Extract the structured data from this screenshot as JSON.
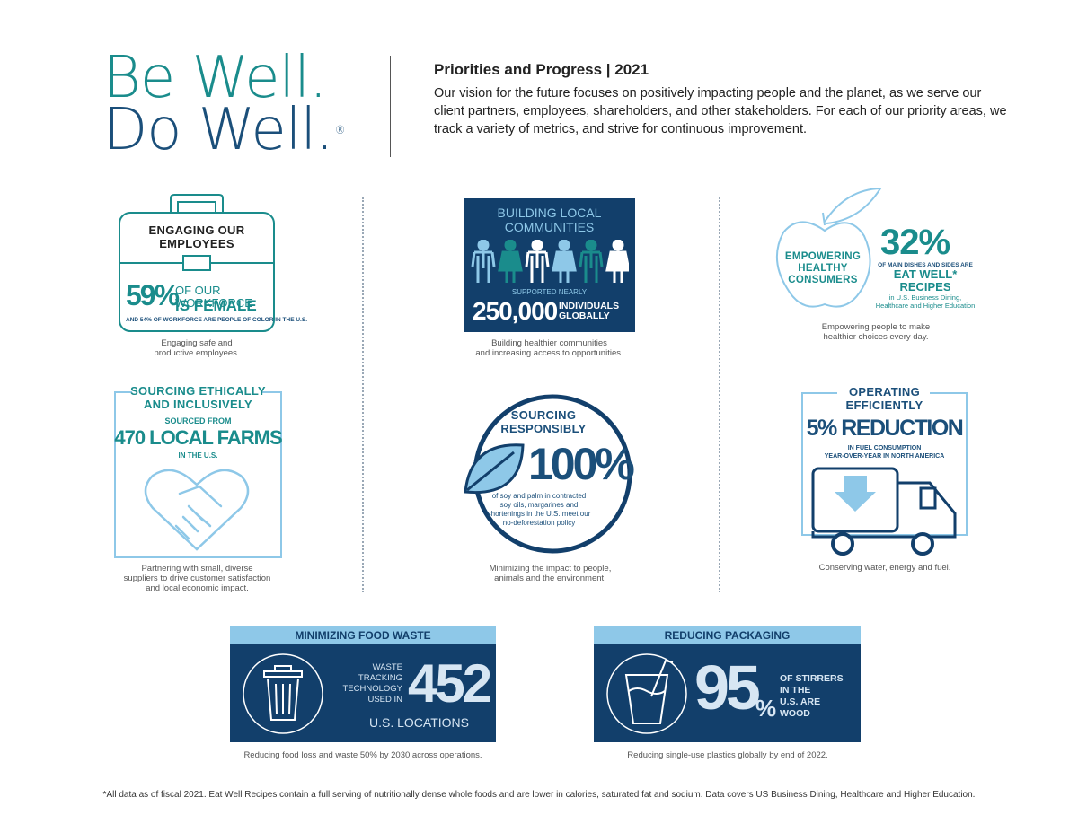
{
  "logo": {
    "line1": "Be Well.",
    "line2": "Do Well.",
    "reg": "®"
  },
  "header": {
    "title": "Priorities and Progress | 2021",
    "body": "Our vision for the future focuses on positively impacting people and the planet, as we serve our client partners, employees, shareholders, and other stakeholders. For each of our priority areas, we track a variety of metrics, and strive for continuous improvement."
  },
  "employees": {
    "heading1": "ENGAGING OUR",
    "heading2": "EMPLOYEES",
    "stat": "59%",
    "stat_text1": "OF OUR WORKFORCE",
    "stat_text2": "IS FEMALE",
    "sub": "AND 54% OF WORKFORCE ARE PEOPLE OF COLOR IN THE U.S.",
    "caption1": "Engaging safe and",
    "caption2": "productive employees."
  },
  "communities": {
    "heading1": "BUILDING LOCAL",
    "heading2": "COMMUNITIES",
    "supported": "SUPPORTED NEARLY",
    "stat": "250,000",
    "stat_text1": "INDIVIDUALS",
    "stat_text2": "GLOBALLY",
    "caption1": "Building healthier communities",
    "caption2": "and increasing access to opportunities."
  },
  "consumers": {
    "heading1": "EMPOWERING",
    "heading2": "HEALTHY",
    "heading3": "CONSUMERS",
    "stat": "32%",
    "line1": "OF MAIN DISHES AND SIDES ARE",
    "line2": "EAT WELL*",
    "line3": "RECIPES",
    "line4": "in U.S. Business Dining,",
    "line5": "Healthcare and Higher Education",
    "caption1": "Empowering people to make",
    "caption2": "healthier choices every day."
  },
  "sourcing_ethically": {
    "heading1": "SOURCING ETHICALLY",
    "heading2": "AND INCLUSIVELY",
    "sourced": "SOURCED FROM",
    "stat": "470 LOCAL FARMS",
    "sub": "IN THE U.S.",
    "caption1": "Partnering with small, diverse",
    "caption2": "suppliers to drive customer satisfaction",
    "caption3": "and local economic impact."
  },
  "sourcing_responsibly": {
    "heading1": "SOURCING",
    "heading2": "RESPONSIBLY",
    "stat": "100%",
    "line1": "of soy and palm in contracted",
    "line2": "soy oils, margarines and",
    "line3": "shortenings in the U.S. meet our",
    "line4": "no-deforestation policy",
    "caption1": "Minimizing the impact to people,",
    "caption2": "animals and the environment."
  },
  "operating": {
    "heading1": "OPERATING",
    "heading2": "EFFICIENTLY",
    "stat": "5% REDUCTION",
    "line1": "IN FUEL CONSUMPTION",
    "line2": "YEAR-OVER-YEAR IN NORTH AMERICA",
    "caption": "Conserving water, energy and fuel."
  },
  "food_waste": {
    "bar": "MINIMIZING FOOD WASTE",
    "line1": "WASTE",
    "line2": "TRACKING",
    "line3": "TECHNOLOGY",
    "line4": "USED IN",
    "stat": "452",
    "locations": "U.S. LOCATIONS",
    "caption": "Reducing food loss and waste 50% by 2030 across operations."
  },
  "packaging": {
    "bar": "REDUCING PACKAGING",
    "stat": "95",
    "pct": "%",
    "line1": "OF STIRRERS",
    "line2": "IN THE",
    "line3": "U.S. ARE",
    "line4": "WOOD",
    "caption": "Reducing single-use plastics globally by end of 2022."
  },
  "footnote": "*All data as of fiscal 2021. Eat Well Recipes contain a full serving of nutritionally dense whole foods and are lower in calories, saturated fat and sodium. Data covers US Business Dining, Healthcare and Higher Education.",
  "colors": {
    "teal": "#1a8c8c",
    "navy": "#123f6b",
    "light_blue": "#8ec8e8"
  }
}
